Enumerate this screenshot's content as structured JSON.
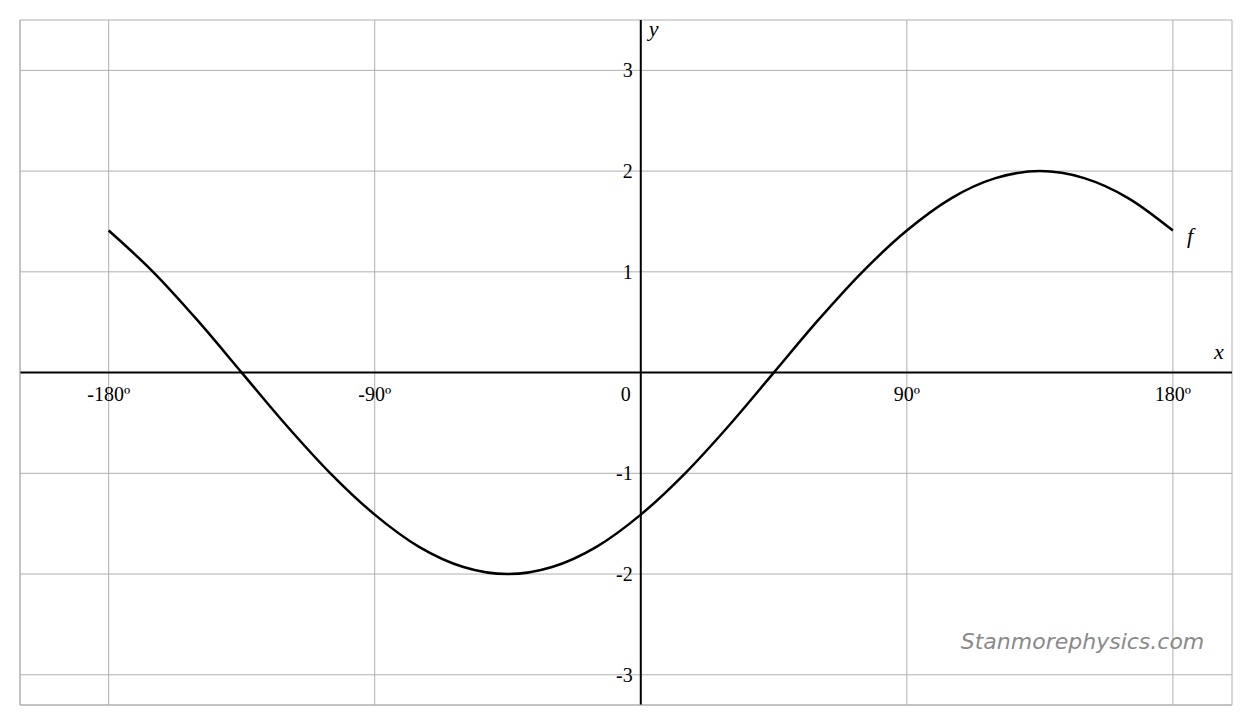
{
  "chart_data": {
    "type": "line",
    "x_label": "x",
    "y_label": "y",
    "watermark": "Stanmorephysics.com",
    "x": [
      -180,
      -165,
      -150,
      -135,
      -120,
      -105,
      -90,
      -75,
      -60,
      -45,
      -30,
      -15,
      0,
      15,
      30,
      45,
      60,
      75,
      90,
      105,
      120,
      135,
      150,
      165,
      180
    ],
    "series": [
      {
        "name": "f",
        "color": "#000000",
        "values": [
          1.41,
          1.0,
          0.52,
          0,
          -0.52,
          -1.0,
          -1.41,
          -1.73,
          -1.93,
          -2,
          -1.93,
          -1.73,
          -1.41,
          -1.0,
          -0.52,
          0,
          0.52,
          1.0,
          1.41,
          1.73,
          1.93,
          2,
          1.93,
          1.73,
          1.41
        ]
      }
    ],
    "xlim": [
      -210,
      200
    ],
    "ylim": [
      -3.3,
      3.5
    ],
    "xticks": [
      {
        "value": -180,
        "label": "-180º"
      },
      {
        "value": -90,
        "label": "-90º"
      },
      0,
      {
        "value": 90,
        "label": "90º"
      },
      {
        "value": 180,
        "label": "180º"
      }
    ],
    "yticks": [
      -3,
      -2,
      -1,
      1,
      2,
      3
    ],
    "grid": true
  }
}
